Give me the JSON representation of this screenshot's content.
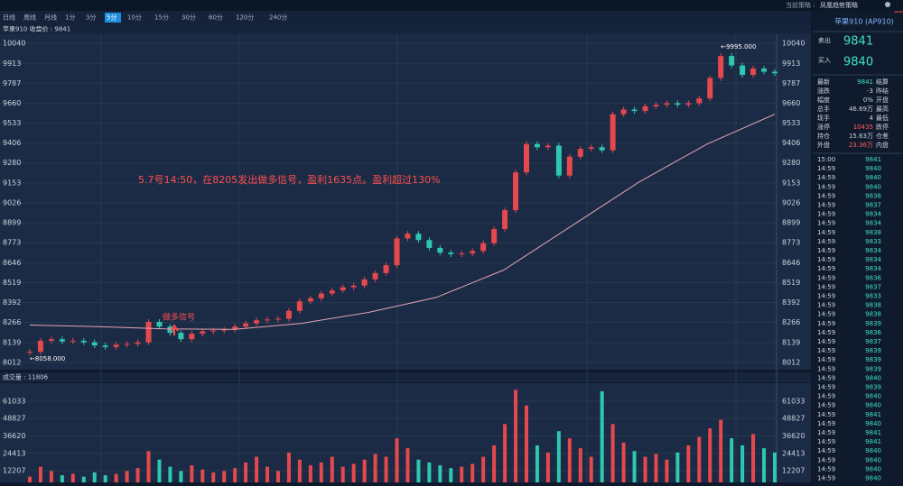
{
  "toolbar": {
    "strategy_label": "当前策略 :",
    "strategy": "凤凰趋势策略"
  },
  "tabs": [
    "日线",
    "周线",
    "月线",
    "1分",
    "3分",
    "5分",
    "10分",
    "15分",
    "30分",
    "60分",
    "120分",
    "240分"
  ],
  "selected_tab": 5,
  "info": "苹果910  收盘价 : 9841",
  "chart_data": [
    {
      "type": "candlestick",
      "up_color": "#e5484d",
      "down_color": "#2ec7b0",
      "ma_color": "#e7a3b4",
      "values": [
        8080,
        8150,
        8160,
        8145,
        8150,
        8140,
        8120,
        8110,
        8125,
        8130,
        8140,
        8270,
        8240,
        8200,
        8160,
        8195,
        8210,
        8215,
        8220,
        8240,
        8260,
        8280,
        8285,
        8290,
        8340,
        8400,
        8420,
        8450,
        8470,
        8490,
        8500,
        8540,
        8580,
        8630,
        8800,
        8830,
        8790,
        8740,
        8710,
        8700,
        8705,
        8720,
        8770,
        8860,
        8980,
        9220,
        9400,
        9380,
        9390,
        9200,
        9320,
        9370,
        9380,
        9360,
        9590,
        9620,
        9610,
        9640,
        9650,
        9660,
        9650,
        9660,
        9690,
        9820,
        9960,
        9900,
        9840,
        9880,
        9860,
        9850
      ],
      "ma": [
        8250,
        8240,
        8225,
        8222,
        8260,
        8330,
        8425,
        8600,
        8880,
        9160,
        9400,
        9590
      ],
      "ylim": [
        7966,
        10098
      ],
      "yticks": [
        8012,
        8139,
        8266,
        8392,
        8519,
        8646,
        8773,
        8899,
        9026,
        9153,
        9280,
        9406,
        9533,
        9660,
        9787,
        9913,
        10040
      ],
      "annotations": {
        "high": "←9995.000",
        "low": "←8058.000",
        "signal": "做多信号",
        "note": "5.7号14:50，在8205发出做多信号，盈利1635点。盈利超过130%"
      }
    },
    {
      "type": "bar",
      "title": "成交量 : 11806",
      "values": [
        8000,
        15000,
        12000,
        9000,
        10000,
        8000,
        11000,
        9000,
        10000,
        12000,
        14000,
        26000,
        20000,
        15000,
        12000,
        16000,
        13000,
        11000,
        12000,
        14000,
        18000,
        22000,
        15000,
        12000,
        25000,
        20000,
        16000,
        18000,
        22000,
        15000,
        17000,
        20000,
        24000,
        22000,
        35000,
        28000,
        20000,
        18000,
        16000,
        14000,
        15000,
        17000,
        22000,
        30000,
        45000,
        69000,
        58000,
        30000,
        25000,
        40000,
        35000,
        28000,
        22000,
        68000,
        45000,
        32000,
        26000,
        22000,
        24000,
        20000,
        25000,
        30000,
        36000,
        42000,
        48000,
        35000,
        30000,
        38000,
        28000,
        25000
      ],
      "ylim": [
        3985,
        73680
      ],
      "yticks": [
        12207,
        24413,
        36620,
        48827,
        61033
      ]
    }
  ],
  "quote": {
    "title": "苹果910 (AP910)",
    "sell_label": "卖出",
    "sell": "9841",
    "buy_label": "买入",
    "buy": "9840",
    "rows": [
      [
        "最新",
        "9841",
        "结算"
      ],
      [
        "涨跌",
        "-3",
        "昨结"
      ],
      [
        "幅度",
        "0%",
        "开盘"
      ],
      [
        "总手",
        "46.69万",
        "最高"
      ],
      [
        "现手",
        "4",
        "最低"
      ],
      [
        "涨停",
        "10435",
        "跌停"
      ],
      [
        "持仓",
        "15.63万",
        "仓差"
      ],
      [
        "外盘",
        "23.36万",
        "内盘"
      ]
    ],
    "ticks_time": [
      "15:00",
      "14:59",
      "14:59",
      "14:59",
      "14:59",
      "14:59",
      "14:59",
      "14:59",
      "14:59",
      "14:59",
      "14:59",
      "14:59",
      "14:59",
      "14:59",
      "14:59",
      "14:59",
      "14:59",
      "14:59",
      "14:59",
      "14:59",
      "14:59",
      "14:59",
      "14:59",
      "14:59",
      "14:59",
      "14:59",
      "14:59",
      "14:59",
      "14:59",
      "14:59",
      "14:59",
      "14:59",
      "14:59",
      "14:59",
      "14:59",
      "14:59"
    ],
    "ticks_price": [
      "9841",
      "9840",
      "9840",
      "9840",
      "9838",
      "9837",
      "9834",
      "9834",
      "9838",
      "9833",
      "9834",
      "9834",
      "9834",
      "9836",
      "9837",
      "9833",
      "9838",
      "9838",
      "9839",
      "9836",
      "9837",
      "9839",
      "9839",
      "9839",
      "9840",
      "9839",
      "9840",
      "9840",
      "9841",
      "9840",
      "9841",
      "9841",
      "9840",
      "9840",
      "9840",
      "9840"
    ]
  }
}
